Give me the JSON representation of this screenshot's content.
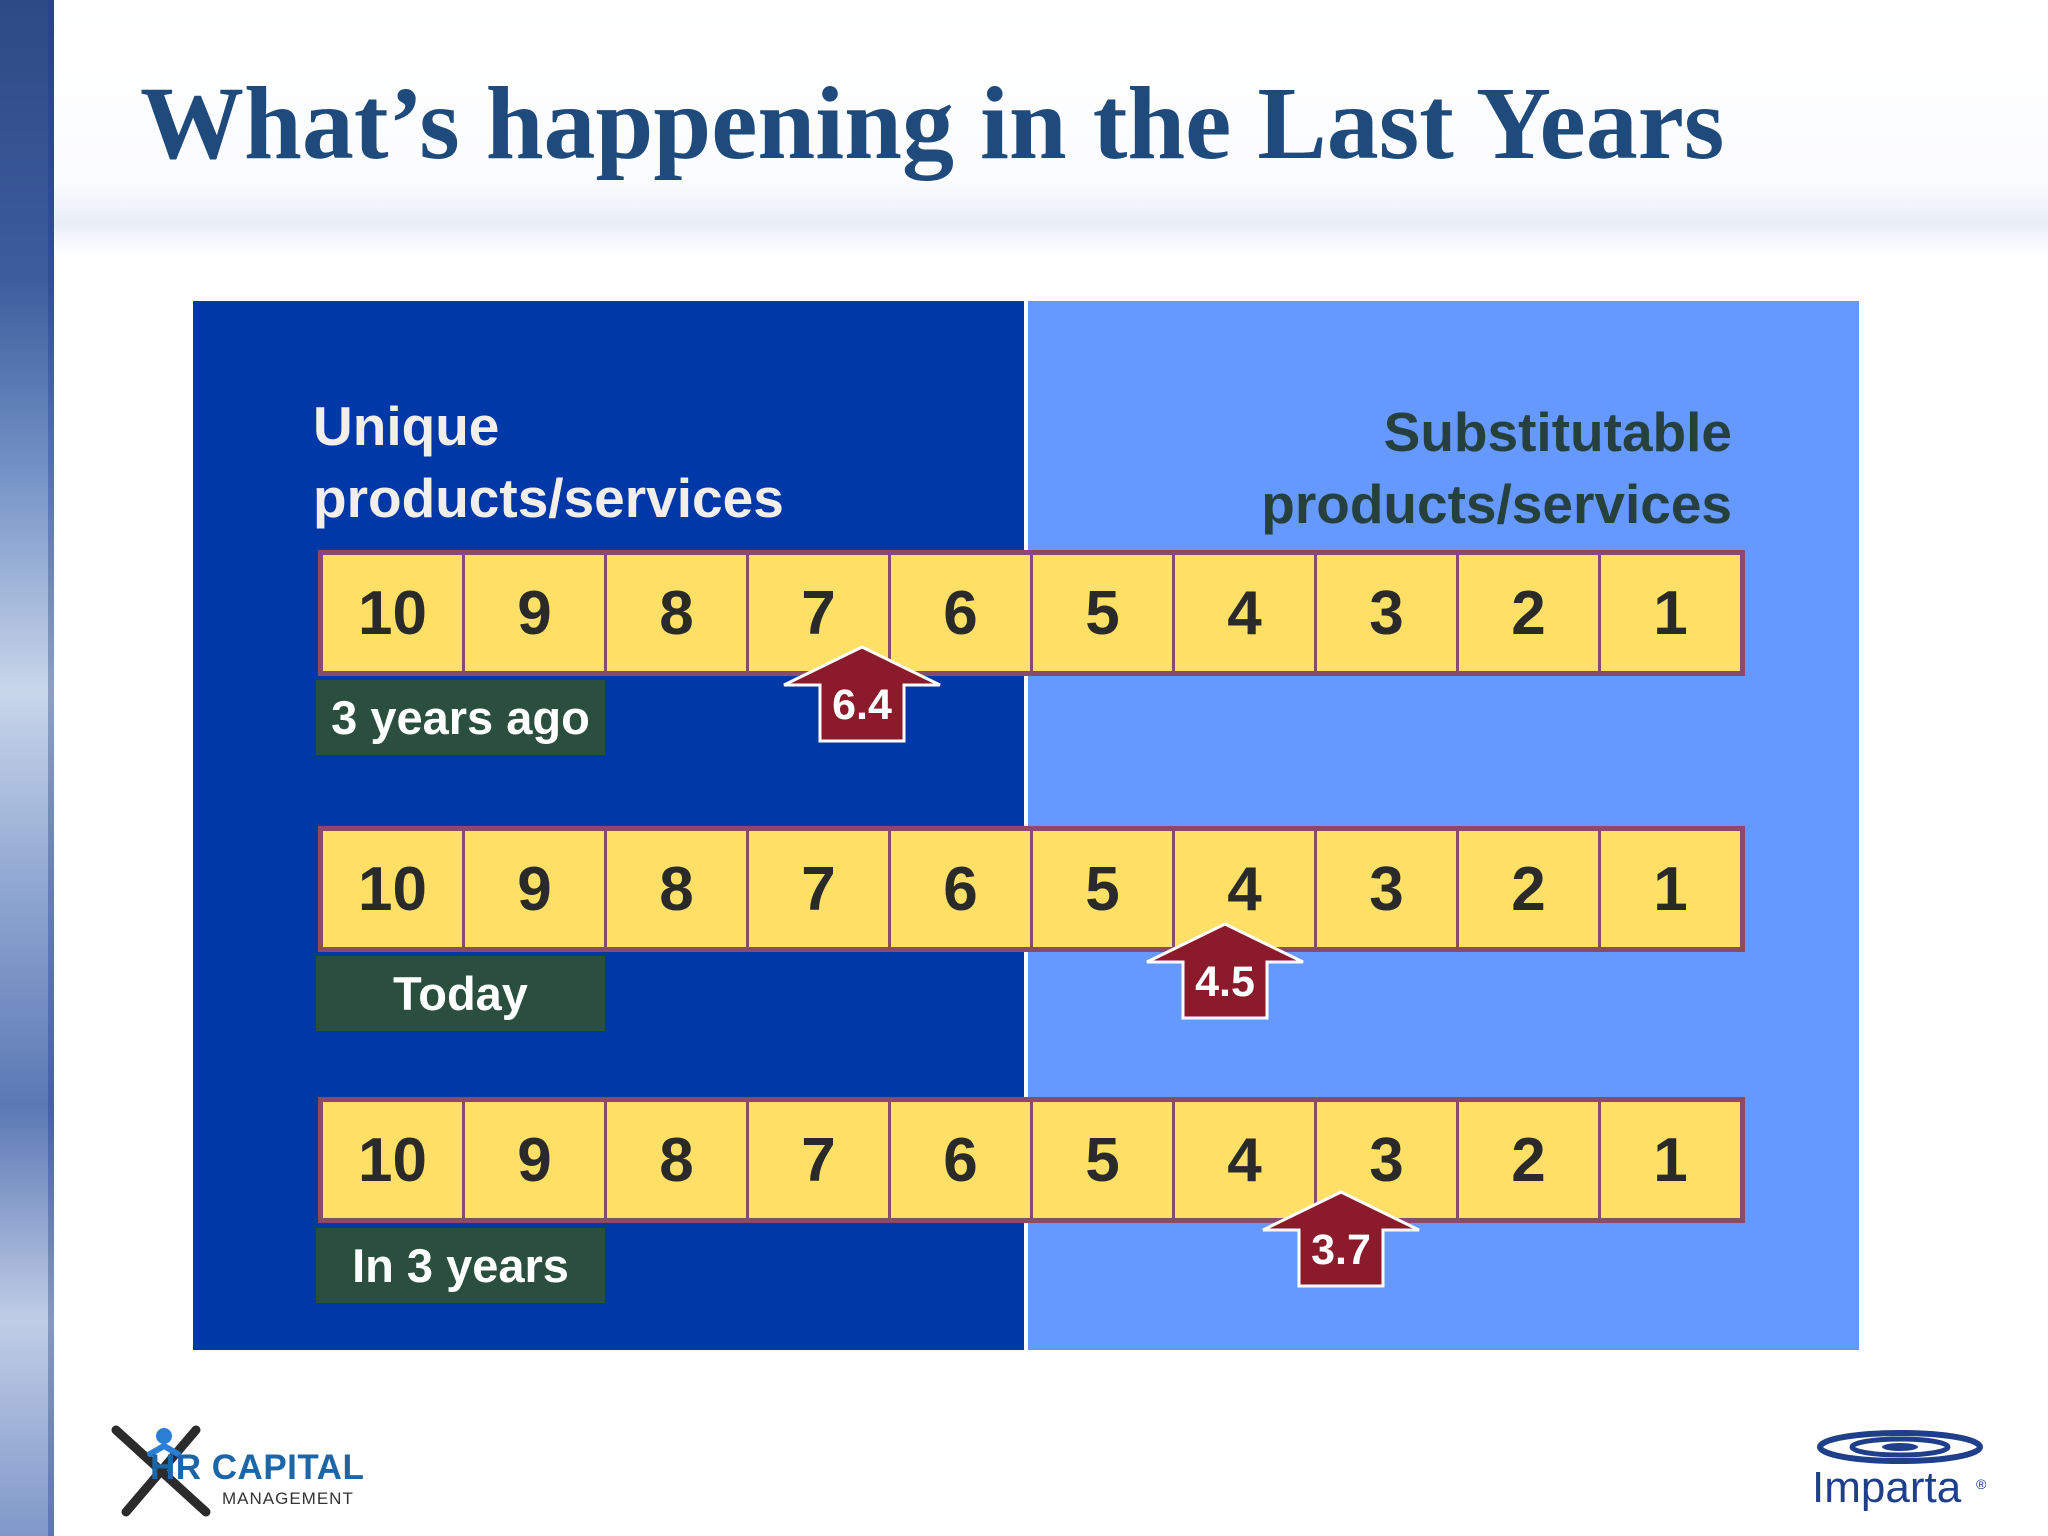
{
  "slide": {
    "title": "What’s happening in the Last Years"
  },
  "panels": {
    "left_title": [
      "Unique",
      "products/services"
    ],
    "right_title": [
      "Substitutable",
      "products/services"
    ]
  },
  "scale": [
    10,
    9,
    8,
    7,
    6,
    5,
    4,
    3,
    2,
    1
  ],
  "rows": [
    {
      "label": "3 years ago",
      "value": "6.4"
    },
    {
      "label": "Today",
      "value": "4.5"
    },
    {
      "label": "In 3 years",
      "value": "3.7"
    }
  ],
  "logos": {
    "left": {
      "main": "HR CAPITAL",
      "sub": "MANAGEMENT"
    },
    "right": {
      "main": "Imparta",
      "reg": "®"
    }
  },
  "colors": {
    "unique_panel": "#0038a8",
    "substitutable_panel": "#6699ff",
    "scale_cell": "#ffe066",
    "label_bg": "#2a4f3e",
    "marker": "#8b1a2a",
    "title": "#1f4a7c"
  }
}
